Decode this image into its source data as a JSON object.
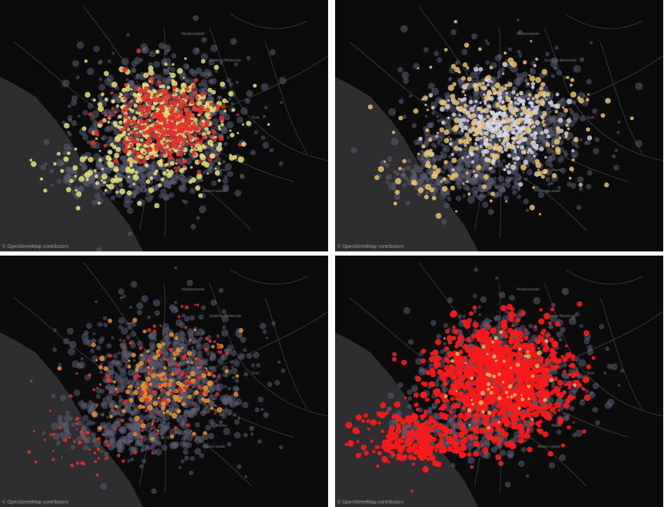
{
  "attribution": "© OpenStreetMap contributors",
  "place_labels": [
    "Montecompatri",
    "Guidonia Montecelio",
    "Tivoli",
    "Marino",
    "Albano Laziale"
  ],
  "colors": {
    "water": "#2e2e30",
    "land": "#0b0b0c",
    "road": "#3a3a3c",
    "base_points": "#5c5c73",
    "yellow": "#e4e07a",
    "red": "#e0312b",
    "gold": "#e8c06a",
    "white": "#d8d8e6",
    "orange": "#e8922a",
    "bright_red": "#ff1a1a"
  },
  "panels": [
    {
      "id": "top-left",
      "overlay": [
        "yellow",
        "red"
      ]
    },
    {
      "id": "top-right",
      "overlay": [
        "white",
        "gold"
      ]
    },
    {
      "id": "bottom-left",
      "overlay": [
        "orange",
        "red"
      ]
    },
    {
      "id": "bottom-right",
      "overlay": [
        "bright_red",
        "gold"
      ]
    }
  ]
}
